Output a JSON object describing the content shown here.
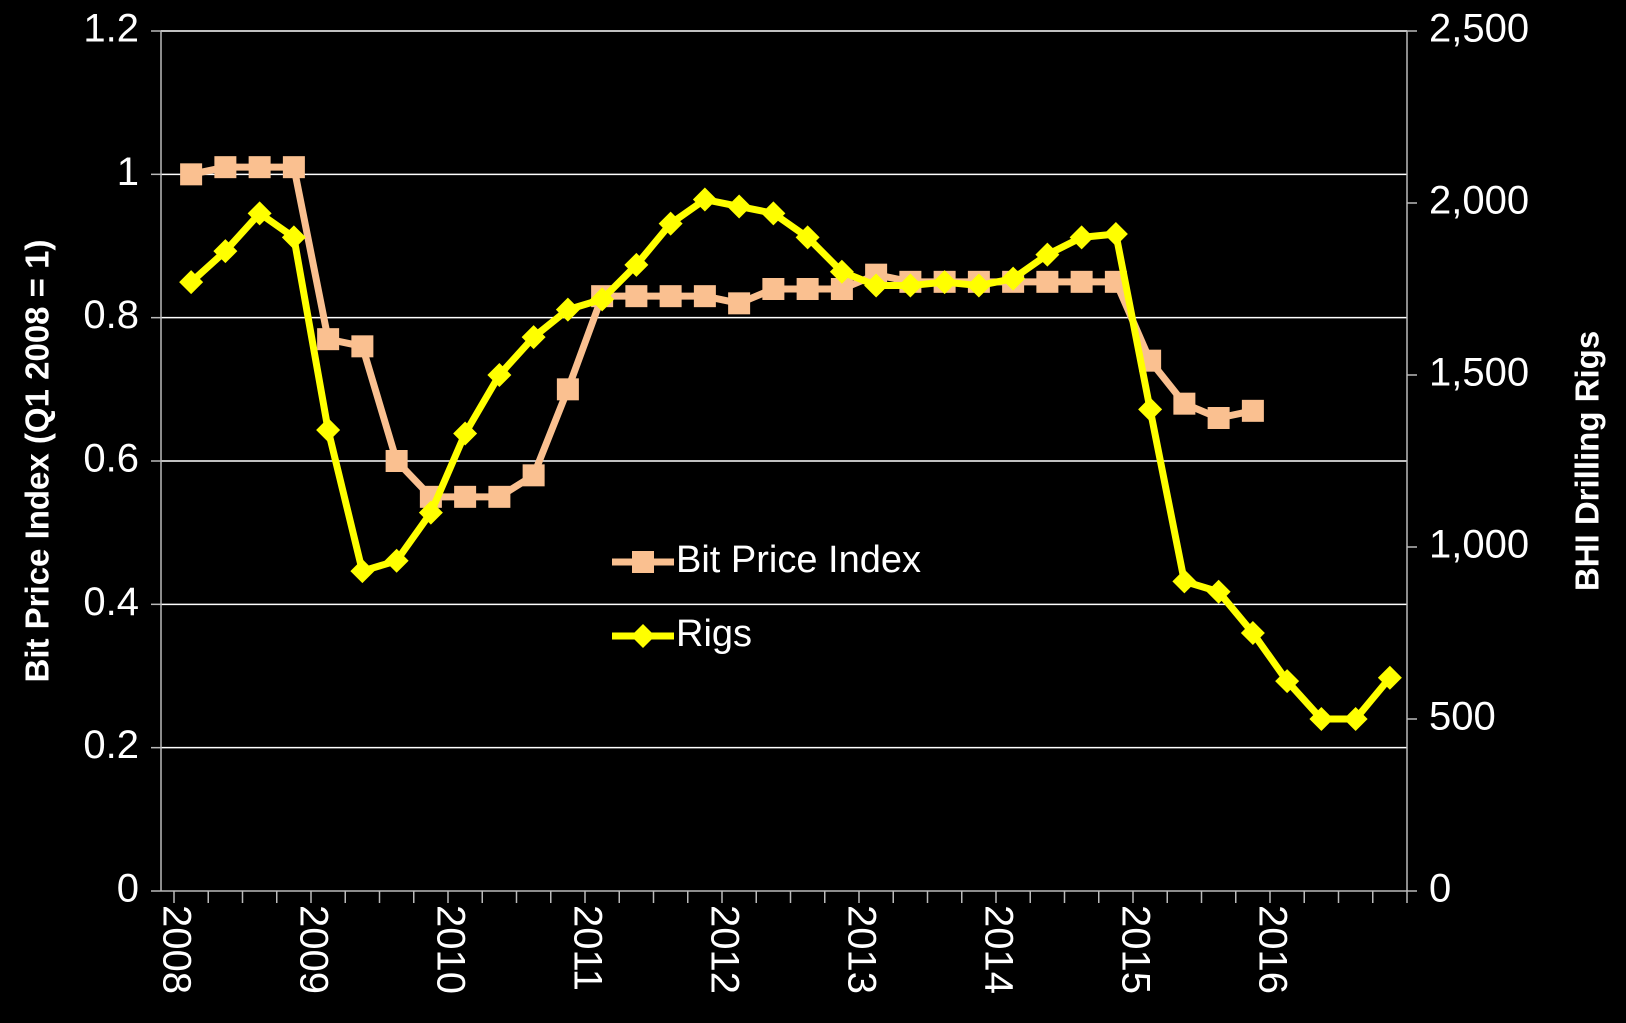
{
  "chart_data": {
    "type": "line",
    "ylabel": "Bit Price Index (Q1 2008 = 1)",
    "y2label": "BHI Drilling Rigs",
    "categories": [
      "2008",
      null,
      null,
      null,
      "2009",
      null,
      null,
      null,
      "2010",
      null,
      null,
      null,
      "2011",
      null,
      null,
      null,
      "2012",
      null,
      null,
      null,
      "2013",
      null,
      null,
      null,
      "2014",
      null,
      null,
      null,
      "2015",
      null,
      null,
      null,
      "2016",
      null,
      null,
      null
    ],
    "series": [
      {
        "name": "Bit Price Index",
        "color": "#fac090",
        "marker": "square",
        "values": [
          1.0,
          1.01,
          1.01,
          1.01,
          0.77,
          0.76,
          0.6,
          0.55,
          0.55,
          0.55,
          0.58,
          0.7,
          0.83,
          0.83,
          0.83,
          0.83,
          0.82,
          0.84,
          0.84,
          0.84,
          0.86,
          0.85,
          0.85,
          0.85,
          0.85,
          0.85,
          0.85,
          0.85,
          0.74,
          0.68,
          0.66,
          0.67,
          null,
          null,
          null,
          null
        ]
      },
      {
        "name": "Rigs",
        "color": "#ffff00",
        "marker": "diamond",
        "axis": "y2",
        "values": [
          1770,
          1860,
          1970,
          1900,
          1340,
          930,
          960,
          1100,
          1330,
          1500,
          1610,
          1690,
          1720,
          1820,
          1940,
          2010,
          1990,
          1970,
          1900,
          1800,
          1760,
          1760,
          1770,
          1760,
          1780,
          1850,
          1900,
          1910,
          1400,
          900,
          870,
          750,
          610,
          500,
          500,
          620
        ]
      }
    ],
    "ylim": [
      0,
      1.2
    ],
    "yticks": [
      0,
      0.2,
      0.4,
      0.6,
      0.8,
      1,
      1.2
    ],
    "y2lim": [
      0,
      2500
    ],
    "y2ticks": [
      0,
      500,
      {
        "value": 1000,
        "label": "1,000"
      },
      {
        "value": 1500,
        "label": "1,500"
      },
      {
        "value": 2000,
        "label": "2,000"
      },
      {
        "value": 2500,
        "label": "2,500"
      }
    ],
    "grid": true,
    "legend": "center",
    "background": "#000000"
  }
}
